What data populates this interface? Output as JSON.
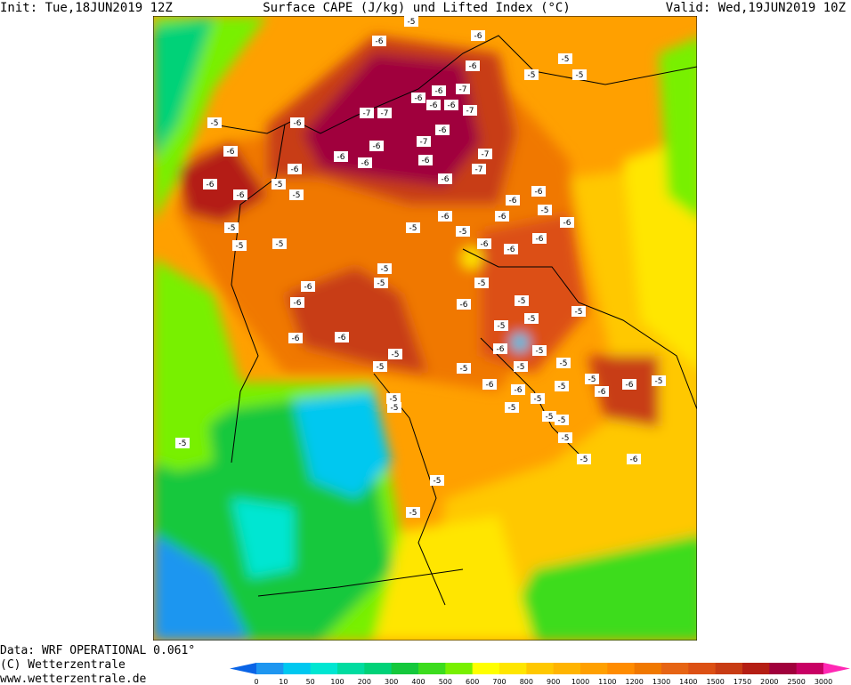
{
  "header": {
    "init": "Init: Tue,18JUN2019 12Z",
    "title": "Surface CAPE (J/kg) und Lifted Index (°C)",
    "valid": "Valid: Wed,19JUN2019 10Z"
  },
  "footer": {
    "data": "Data: WRF OPERATIONAL 0.061°",
    "copyright": "(C) Wetterzentrale",
    "url": "www.wetterzentrale.de"
  },
  "colorbar": {
    "ticks": [
      0,
      10,
      50,
      100,
      200,
      300,
      400,
      500,
      600,
      700,
      800,
      900,
      1000,
      1100,
      1200,
      1300,
      1400,
      1500,
      1750,
      2000,
      2500,
      3000
    ],
    "colors": [
      "#0a64e6",
      "#1e96f0",
      "#00c8f0",
      "#00e6d2",
      "#00dca0",
      "#00d278",
      "#14c83c",
      "#3cdc1e",
      "#78f000",
      "#ffff00",
      "#ffe600",
      "#ffc800",
      "#ffb400",
      "#ffa000",
      "#ff8c00",
      "#f07800",
      "#e66414",
      "#dc5014",
      "#c83c14",
      "#b41e14",
      "#a0003c",
      "#c80064",
      "#ff28b4"
    ]
  },
  "map": {
    "labels": [
      "-5",
      "-6",
      "-6",
      "-6",
      "-5",
      "-5",
      "-5",
      "-6",
      "-6",
      "-7",
      "-6",
      "-6",
      "-7",
      "-5",
      "-6",
      "-7",
      "-7",
      "-7",
      "-6",
      "-6",
      "-6",
      "-6",
      "-6",
      "-7",
      "-7",
      "-6",
      "-6",
      "-6",
      "-6",
      "-5",
      "-5",
      "-6",
      "-6",
      "-6",
      "-6",
      "-6",
      "-5",
      "-6",
      "-5",
      "-5",
      "-6",
      "-6",
      "-6",
      "-5",
      "-5",
      "-5",
      "-5",
      "-5",
      "-6",
      "-6",
      "-5",
      "-6",
      "-5",
      "-5",
      "-5",
      "-5",
      "-6",
      "-6",
      "-5",
      "-5",
      "-6",
      "-5",
      "-5",
      "-5",
      "-5",
      "-6",
      "-6",
      "-5",
      "-5",
      "-6",
      "-5",
      "-6",
      "-5",
      "-5",
      "-5",
      "-5",
      "-5",
      "-5",
      "-5",
      "-5",
      "-6",
      "-5",
      "-5",
      "-5"
    ]
  }
}
